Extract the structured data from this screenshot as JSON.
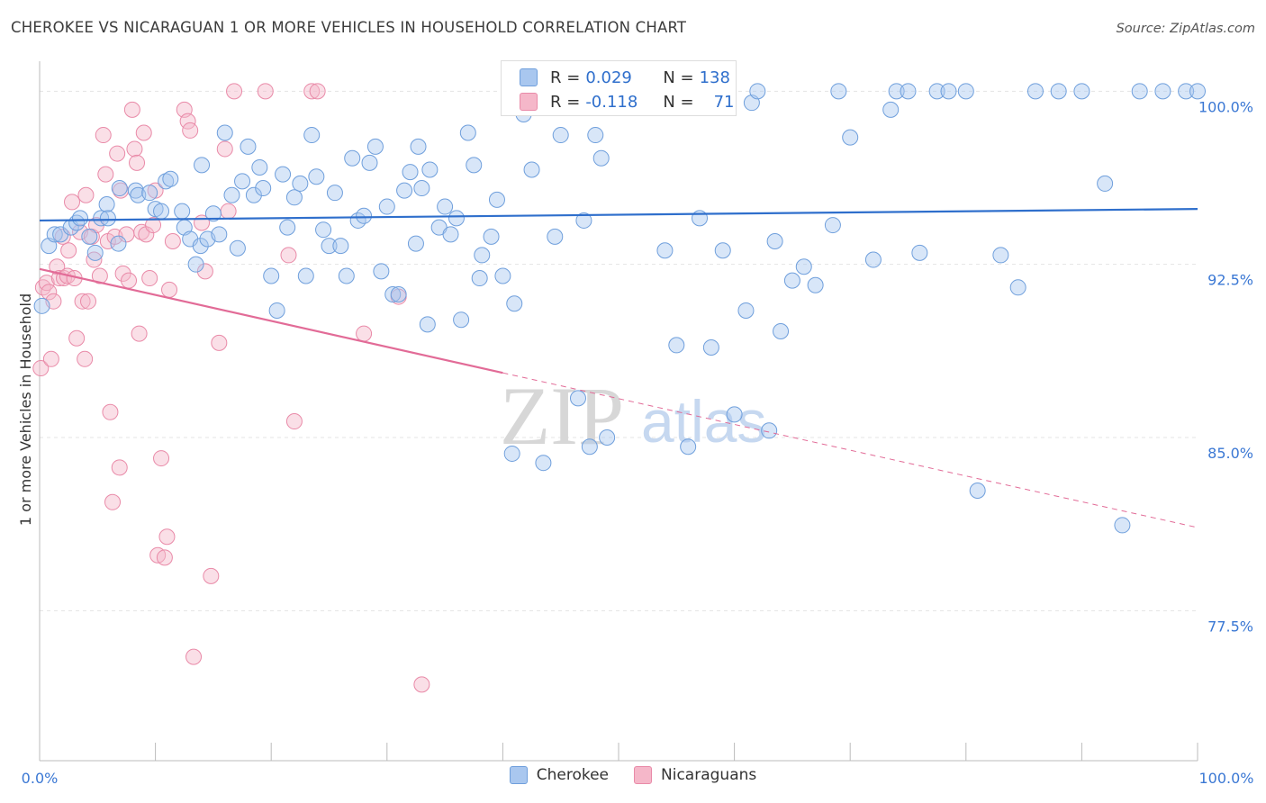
{
  "title": "CHEROKEE VS NICARAGUAN 1 OR MORE VEHICLES IN HOUSEHOLD CORRELATION CHART",
  "source": "Source: ZipAtlas.com",
  "watermark": {
    "zip": "ZIP",
    "atlas": "atlas"
  },
  "colors": {
    "cherokee_fill": "#a9c7ef",
    "cherokee_stroke": "#6f9fdc",
    "cherokee_line": "#2f6fcc",
    "nicaraguan_fill": "#f5b7c9",
    "nicaraguan_stroke": "#e98aa8",
    "nicaraguan_line": "#e26b97",
    "axis_text": "#3b78d4",
    "grid": "#e4e4e4"
  },
  "legend": {
    "rows": [
      {
        "r_label": "R =",
        "r_value": "0.029",
        "n_label": "N =",
        "n_value": "138"
      },
      {
        "r_label": "R =",
        "r_value": "-0.118",
        "n_label": "N =",
        "n_value": "71"
      }
    ]
  },
  "bottom_legend": {
    "cherokee": "Cherokee",
    "nicaraguans": "Nicaraguans"
  },
  "chart_data": {
    "type": "scatter",
    "xlabel": "",
    "ylabel": "1 or more Vehicles in Household",
    "xlim": [
      0,
      100
    ],
    "ylim": [
      71.0,
      101.3
    ],
    "x_tick_labels": [
      "0.0%",
      "100.0%"
    ],
    "y_ticks": [
      77.5,
      85.0,
      92.5,
      100.0
    ],
    "y_tick_labels": [
      "77.5%",
      "85.0%",
      "92.5%",
      "100.0%"
    ],
    "grid": true,
    "series": [
      {
        "name": "Cherokee",
        "trend": [
          [
            0,
            94.4
          ],
          [
            100,
            94.9
          ]
        ],
        "points": [
          [
            0.2,
            90.7
          ],
          [
            0.8,
            93.3
          ],
          [
            1.3,
            93.8
          ],
          [
            1.8,
            93.8
          ],
          [
            2.7,
            94.1
          ],
          [
            3.2,
            94.3
          ],
          [
            3.5,
            94.5
          ],
          [
            4.3,
            93.7
          ],
          [
            4.8,
            93.0
          ],
          [
            5.3,
            94.5
          ],
          [
            5.8,
            95.1
          ],
          [
            5.9,
            94.5
          ],
          [
            6.8,
            93.4
          ],
          [
            6.9,
            95.8
          ],
          [
            8.3,
            95.7
          ],
          [
            8.5,
            95.5
          ],
          [
            9.5,
            95.6
          ],
          [
            10.0,
            94.9
          ],
          [
            10.5,
            94.8
          ],
          [
            10.9,
            96.1
          ],
          [
            11.3,
            96.2
          ],
          [
            12.3,
            94.8
          ],
          [
            12.5,
            94.1
          ],
          [
            13.0,
            93.6
          ],
          [
            13.5,
            92.5
          ],
          [
            13.9,
            93.3
          ],
          [
            14.0,
            96.8
          ],
          [
            14.5,
            93.6
          ],
          [
            15.0,
            94.7
          ],
          [
            15.5,
            93.8
          ],
          [
            16.0,
            98.2
          ],
          [
            16.6,
            95.5
          ],
          [
            17.1,
            93.2
          ],
          [
            17.5,
            96.1
          ],
          [
            18.0,
            97.6
          ],
          [
            18.5,
            95.5
          ],
          [
            19.0,
            96.7
          ],
          [
            19.3,
            95.8
          ],
          [
            20.0,
            92.0
          ],
          [
            20.5,
            90.5
          ],
          [
            21.0,
            96.4
          ],
          [
            21.4,
            94.1
          ],
          [
            22.0,
            95.4
          ],
          [
            22.5,
            96.0
          ],
          [
            23.0,
            92.0
          ],
          [
            23.5,
            98.1
          ],
          [
            23.9,
            96.3
          ],
          [
            24.5,
            94.0
          ],
          [
            25.0,
            93.3
          ],
          [
            25.5,
            95.6
          ],
          [
            26.0,
            93.3
          ],
          [
            26.5,
            92.0
          ],
          [
            27.0,
            97.1
          ],
          [
            27.5,
            94.4
          ],
          [
            28.0,
            94.6
          ],
          [
            28.5,
            96.9
          ],
          [
            29.0,
            97.6
          ],
          [
            29.5,
            92.2
          ],
          [
            30.0,
            95.0
          ],
          [
            30.5,
            91.2
          ],
          [
            31.0,
            91.2
          ],
          [
            31.5,
            95.7
          ],
          [
            32.0,
            96.5
          ],
          [
            32.5,
            93.4
          ],
          [
            32.7,
            97.6
          ],
          [
            33.0,
            95.8
          ],
          [
            33.5,
            89.9
          ],
          [
            33.7,
            96.6
          ],
          [
            34.5,
            94.1
          ],
          [
            35.0,
            95.0
          ],
          [
            35.5,
            93.8
          ],
          [
            36.0,
            94.5
          ],
          [
            36.4,
            90.1
          ],
          [
            37.0,
            98.2
          ],
          [
            37.5,
            96.8
          ],
          [
            38.0,
            91.9
          ],
          [
            38.2,
            92.9
          ],
          [
            39.0,
            93.7
          ],
          [
            39.5,
            95.3
          ],
          [
            40.0,
            92.0
          ],
          [
            40.8,
            84.3
          ],
          [
            41.0,
            90.8
          ],
          [
            41.5,
            100.0
          ],
          [
            41.8,
            99.0
          ],
          [
            42.5,
            96.6
          ],
          [
            43.5,
            83.9
          ],
          [
            44.0,
            99.8
          ],
          [
            44.5,
            93.7
          ],
          [
            45.0,
            98.1
          ],
          [
            46.0,
            100.0
          ],
          [
            46.5,
            86.7
          ],
          [
            46.8,
            100.0
          ],
          [
            47.0,
            94.4
          ],
          [
            47.5,
            84.6
          ],
          [
            48.0,
            98.1
          ],
          [
            48.5,
            97.1
          ],
          [
            49.0,
            85.0
          ],
          [
            52.0,
            100.0
          ],
          [
            52.5,
            100.0
          ],
          [
            54.0,
            93.1
          ],
          [
            55.0,
            89.0
          ],
          [
            56.0,
            84.6
          ],
          [
            57.0,
            94.5
          ],
          [
            58.0,
            88.9
          ],
          [
            59.0,
            93.1
          ],
          [
            60.0,
            86.0
          ],
          [
            61.0,
            90.5
          ],
          [
            61.5,
            99.5
          ],
          [
            62.0,
            100.0
          ],
          [
            63.0,
            85.3
          ],
          [
            63.5,
            93.5
          ],
          [
            64.0,
            89.6
          ],
          [
            65.0,
            91.8
          ],
          [
            66.0,
            92.4
          ],
          [
            67.0,
            91.6
          ],
          [
            68.5,
            94.2
          ],
          [
            69.0,
            100.0
          ],
          [
            70.0,
            98.0
          ],
          [
            72.0,
            92.7
          ],
          [
            73.5,
            99.2
          ],
          [
            74.0,
            100.0
          ],
          [
            75.0,
            100.0
          ],
          [
            76.0,
            93.0
          ],
          [
            77.5,
            100.0
          ],
          [
            78.5,
            100.0
          ],
          [
            80.0,
            100.0
          ],
          [
            81.0,
            82.7
          ],
          [
            83.0,
            92.9
          ],
          [
            84.5,
            91.5
          ],
          [
            86.0,
            100.0
          ],
          [
            88.0,
            100.0
          ],
          [
            90.0,
            100.0
          ],
          [
            92.0,
            96.0
          ],
          [
            93.5,
            81.2
          ],
          [
            95.0,
            100.0
          ],
          [
            97.0,
            100.0
          ],
          [
            99.0,
            100.0
          ],
          [
            100.0,
            100.0
          ]
        ]
      },
      {
        "name": "Nicaraguans",
        "trend": [
          [
            0,
            92.3
          ],
          [
            40,
            87.8
          ]
        ],
        "trend_dashed": [
          [
            40,
            87.8
          ],
          [
            100,
            81.1
          ]
        ],
        "points": [
          [
            0.1,
            88.0
          ],
          [
            0.3,
            91.5
          ],
          [
            0.6,
            91.7
          ],
          [
            0.8,
            91.3
          ],
          [
            1.0,
            88.4
          ],
          [
            1.2,
            90.9
          ],
          [
            1.5,
            92.4
          ],
          [
            1.7,
            91.9
          ],
          [
            2.0,
            93.7
          ],
          [
            2.1,
            91.9
          ],
          [
            2.4,
            92.0
          ],
          [
            2.5,
            93.1
          ],
          [
            2.8,
            95.2
          ],
          [
            3.0,
            91.9
          ],
          [
            3.2,
            89.3
          ],
          [
            3.5,
            93.9
          ],
          [
            3.7,
            90.9
          ],
          [
            3.9,
            88.4
          ],
          [
            4.0,
            95.5
          ],
          [
            4.2,
            90.9
          ],
          [
            4.5,
            93.7
          ],
          [
            4.7,
            92.7
          ],
          [
            4.9,
            94.2
          ],
          [
            5.2,
            92.0
          ],
          [
            5.5,
            98.1
          ],
          [
            5.7,
            96.4
          ],
          [
            5.9,
            93.5
          ],
          [
            6.1,
            86.1
          ],
          [
            6.3,
            82.2
          ],
          [
            6.5,
            93.7
          ],
          [
            6.7,
            97.3
          ],
          [
            6.9,
            83.7
          ],
          [
            7.0,
            95.7
          ],
          [
            7.2,
            92.1
          ],
          [
            7.5,
            93.8
          ],
          [
            7.7,
            91.8
          ],
          [
            8.0,
            99.2
          ],
          [
            8.2,
            97.5
          ],
          [
            8.4,
            96.9
          ],
          [
            8.6,
            89.5
          ],
          [
            8.8,
            93.9
          ],
          [
            9.0,
            98.2
          ],
          [
            9.2,
            93.8
          ],
          [
            9.5,
            91.9
          ],
          [
            9.8,
            94.2
          ],
          [
            10.0,
            95.7
          ],
          [
            10.2,
            79.9
          ],
          [
            10.5,
            84.1
          ],
          [
            10.8,
            79.8
          ],
          [
            11.0,
            80.7
          ],
          [
            11.2,
            91.4
          ],
          [
            11.5,
            93.5
          ],
          [
            12.5,
            99.2
          ],
          [
            12.8,
            98.7
          ],
          [
            13.0,
            98.3
          ],
          [
            13.3,
            75.5
          ],
          [
            14.0,
            94.3
          ],
          [
            14.3,
            92.2
          ],
          [
            14.8,
            79.0
          ],
          [
            15.5,
            89.1
          ],
          [
            16.0,
            97.5
          ],
          [
            16.3,
            94.8
          ],
          [
            16.8,
            100.0
          ],
          [
            19.5,
            100.0
          ],
          [
            21.5,
            92.9
          ],
          [
            22.0,
            85.7
          ],
          [
            23.5,
            100.0
          ],
          [
            24.0,
            100.0
          ],
          [
            33.0,
            74.3
          ],
          [
            28.0,
            89.5
          ],
          [
            31.0,
            91.1
          ]
        ]
      }
    ]
  }
}
